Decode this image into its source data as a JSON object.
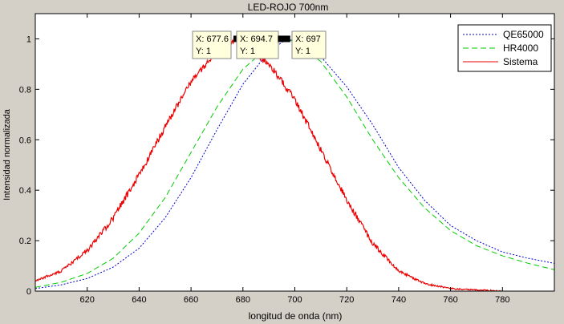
{
  "chart_data": {
    "type": "line",
    "title": "LED-ROJO 700nm",
    "xlabel": "longitud de onda (nm)",
    "ylabel": "Intensidad normalizada",
    "xlim": [
      600,
      800
    ],
    "ylim": [
      0,
      1.1
    ],
    "xticks": [
      620,
      640,
      660,
      680,
      700,
      720,
      740,
      760,
      780
    ],
    "yticks": [
      0,
      0.2,
      0.4,
      0.6,
      0.8,
      1
    ],
    "grid": false,
    "legend_position": "top-right",
    "series": [
      {
        "name": "QE65000",
        "color": "#0000cc",
        "style": "dotted",
        "x": [
          600,
          610,
          620,
          630,
          640,
          650,
          660,
          670,
          680,
          690,
          697,
          700,
          710,
          720,
          730,
          740,
          750,
          760,
          770,
          780,
          790,
          800
        ],
        "y": [
          0.01,
          0.025,
          0.05,
          0.095,
          0.17,
          0.29,
          0.45,
          0.64,
          0.82,
          0.95,
          1.0,
          0.99,
          0.93,
          0.81,
          0.66,
          0.49,
          0.36,
          0.26,
          0.2,
          0.155,
          0.13,
          0.11
        ]
      },
      {
        "name": "HR4000",
        "color": "#00cc00",
        "style": "dashed",
        "x": [
          600,
          610,
          620,
          630,
          640,
          650,
          660,
          670,
          680,
          690,
          694.7,
          700,
          710,
          720,
          730,
          740,
          750,
          760,
          770,
          780,
          790,
          800
        ],
        "y": [
          0.015,
          0.035,
          0.07,
          0.13,
          0.23,
          0.37,
          0.55,
          0.73,
          0.88,
          0.97,
          1.0,
          0.99,
          0.91,
          0.77,
          0.6,
          0.45,
          0.33,
          0.24,
          0.18,
          0.14,
          0.11,
          0.085
        ]
      },
      {
        "name": "Sistema",
        "color": "#ee0000",
        "style": "solid",
        "x": [
          600,
          610,
          620,
          630,
          640,
          650,
          660,
          670,
          677.6,
          680,
          690,
          700,
          710,
          720,
          730,
          740,
          750,
          760,
          770,
          780
        ],
        "y": [
          0.04,
          0.08,
          0.16,
          0.29,
          0.46,
          0.65,
          0.83,
          0.95,
          1.0,
          0.98,
          0.9,
          0.76,
          0.56,
          0.36,
          0.19,
          0.08,
          0.03,
          0.01,
          0.005,
          0.0
        ]
      }
    ],
    "datatips": [
      {
        "x_label": "X: 677.6",
        "y_label": "Y: 1",
        "x": 677.6,
        "y": 1
      },
      {
        "x_label": "X: 694.7",
        "y_label": "Y: 1",
        "x": 694.7,
        "y": 1
      },
      {
        "x_label": "X: 697",
        "y_label": "Y: 1",
        "x": 697,
        "y": 1
      }
    ]
  }
}
